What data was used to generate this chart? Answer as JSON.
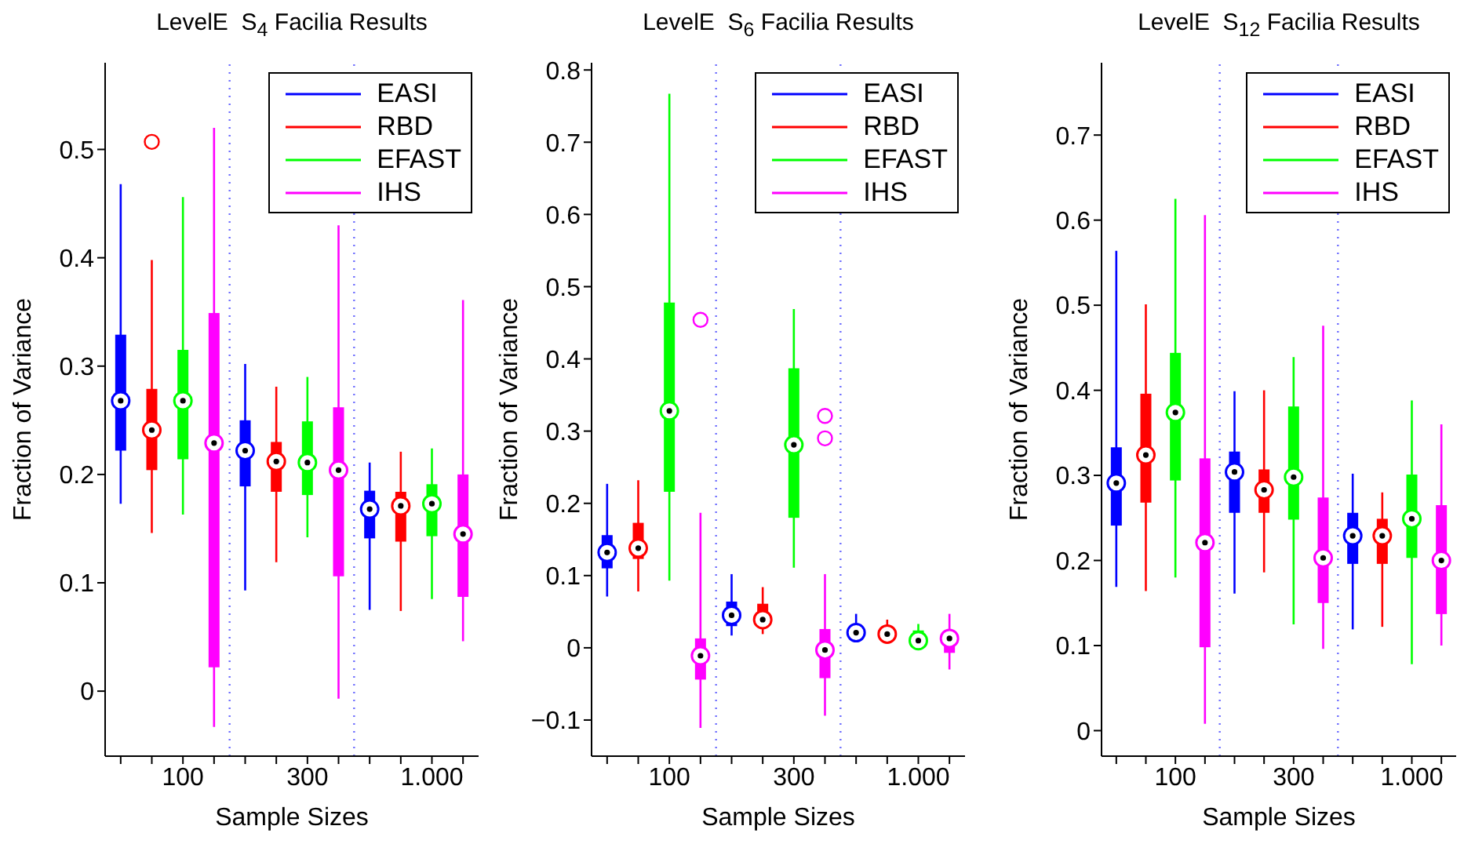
{
  "chart_data": [
    {
      "type": "box",
      "title": "LevelE  S$_{4}$ Facilia Results",
      "xlabel": "Sample Sizes",
      "ylabel": "Fraction of Variance",
      "legend": "top right",
      "categories": [
        null,
        null,
        "100",
        null,
        null,
        null,
        "300",
        null,
        null,
        null,
        "1.000",
        null
      ],
      "ylim": [
        -0.06,
        0.58
      ],
      "yticks": [
        0,
        0.1,
        0.2,
        0.3,
        0.4,
        0.5
      ],
      "series": [
        {
          "name": "EASI",
          "color": "#0000ff",
          "boxes": [
            {
              "low": 0.173,
              "q1": 0.222,
              "median": 0.268,
              "q3": 0.329,
              "high": 0.468
            },
            null,
            null,
            null,
            {
              "low": 0.093,
              "q1": 0.189,
              "median": 0.222,
              "q3": 0.25,
              "high": 0.302
            },
            null,
            null,
            null,
            {
              "low": 0.075,
              "q1": 0.141,
              "median": 0.168,
              "q3": 0.185,
              "high": 0.211
            },
            null,
            null,
            null
          ]
        },
        {
          "name": "RBD",
          "color": "#ff0000",
          "boxes": [
            null,
            {
              "low": 0.146,
              "q1": 0.204,
              "median": 0.241,
              "q3": 0.279,
              "high": 0.398,
              "outliers": [
                0.507
              ]
            },
            null,
            null,
            null,
            {
              "low": 0.119,
              "q1": 0.184,
              "median": 0.212,
              "q3": 0.23,
              "high": 0.281
            },
            null,
            null,
            null,
            {
              "low": 0.074,
              "q1": 0.138,
              "median": 0.171,
              "q3": 0.184,
              "high": 0.221
            },
            null,
            null
          ]
        },
        {
          "name": "EFAST",
          "color": "#00ff00",
          "boxes": [
            null,
            null,
            {
              "low": 0.163,
              "q1": 0.214,
              "median": 0.268,
              "q3": 0.315,
              "high": 0.456
            },
            null,
            null,
            null,
            {
              "low": 0.142,
              "q1": 0.181,
              "median": 0.211,
              "q3": 0.249,
              "high": 0.29
            },
            null,
            null,
            null,
            {
              "low": 0.085,
              "q1": 0.143,
              "median": 0.173,
              "q3": 0.191,
              "high": 0.224
            },
            null
          ]
        },
        {
          "name": "IHS",
          "color": "#ff00ff",
          "boxes": [
            null,
            null,
            null,
            {
              "low": -0.033,
              "q1": 0.022,
              "median": 0.229,
              "q3": 0.349,
              "high": 0.52
            },
            null,
            null,
            null,
            {
              "low": -0.007,
              "q1": 0.106,
              "median": 0.204,
              "q3": 0.262,
              "high": 0.43
            },
            null,
            null,
            null,
            {
              "low": 0.046,
              "q1": 0.087,
              "median": 0.145,
              "q3": 0.2,
              "high": 0.361
            }
          ]
        }
      ]
    },
    {
      "type": "box",
      "title": "LevelE  S$_{6}$ Facilia Results",
      "xlabel": "Sample Sizes",
      "ylabel": "Fraction of Variance",
      "legend": "top right",
      "categories": [
        null,
        null,
        "100",
        null,
        null,
        null,
        "300",
        null,
        null,
        null,
        "1.000",
        null
      ],
      "ylim": [
        -0.15,
        0.81
      ],
      "yticks": [
        -0.1,
        0,
        0.1,
        0.2,
        0.3,
        0.4,
        0.5,
        0.6,
        0.7,
        0.8
      ],
      "series": [
        {
          "name": "EASI",
          "color": "#0000ff",
          "boxes": [
            {
              "low": 0.071,
              "q1": 0.11,
              "median": 0.132,
              "q3": 0.156,
              "high": 0.227
            },
            null,
            null,
            null,
            {
              "low": 0.017,
              "q1": 0.03,
              "median": 0.045,
              "q3": 0.064,
              "high": 0.102
            },
            null,
            null,
            null,
            {
              "low": 0.013,
              "q1": 0.018,
              "median": 0.021,
              "q3": 0.024,
              "high": 0.047
            },
            null,
            null,
            null
          ]
        },
        {
          "name": "RBD",
          "color": "#ff0000",
          "boxes": [
            null,
            {
              "low": 0.078,
              "q1": 0.123,
              "median": 0.138,
              "q3": 0.173,
              "high": 0.232
            },
            null,
            null,
            null,
            {
              "low": 0.019,
              "q1": 0.028,
              "median": 0.039,
              "q3": 0.061,
              "high": 0.084
            },
            null,
            null,
            null,
            {
              "low": 0.012,
              "q1": 0.016,
              "median": 0.019,
              "q3": 0.022,
              "high": 0.039
            },
            null,
            null
          ]
        },
        {
          "name": "EFAST",
          "color": "#00ff00",
          "boxes": [
            null,
            null,
            {
              "low": 0.093,
              "q1": 0.216,
              "median": 0.328,
              "q3": 0.478,
              "high": 0.767
            },
            null,
            null,
            null,
            {
              "low": 0.111,
              "q1": 0.18,
              "median": 0.281,
              "q3": 0.387,
              "high": 0.469
            },
            null,
            null,
            null,
            {
              "low": 0.002,
              "q1": 0.005,
              "median": 0.01,
              "q3": 0.024,
              "high": 0.033
            },
            null
          ]
        },
        {
          "name": "IHS",
          "color": "#ff00ff",
          "boxes": [
            null,
            null,
            null,
            {
              "low": -0.111,
              "q1": -0.044,
              "median": -0.011,
              "q3": 0.013,
              "high": 0.187,
              "outliers": [
                0.454
              ]
            },
            null,
            null,
            null,
            {
              "low": -0.094,
              "q1": -0.042,
              "median": -0.003,
              "q3": 0.026,
              "high": 0.102,
              "outliers": [
                0.321,
                0.29
              ]
            },
            null,
            null,
            null,
            {
              "low": -0.03,
              "q1": -0.007,
              "median": 0.013,
              "q3": 0.016,
              "high": 0.047
            }
          ]
        }
      ]
    },
    {
      "type": "box",
      "title": "LevelE  S$_{12}$ Facilia Results",
      "xlabel": "Sample Sizes",
      "ylabel": "Fraction of Variance",
      "legend": "top right",
      "categories": [
        null,
        null,
        "100",
        null,
        null,
        null,
        "300",
        null,
        null,
        null,
        "1.000",
        null
      ],
      "ylim": [
        -0.03,
        0.785
      ],
      "yticks": [
        0,
        0.1,
        0.2,
        0.3,
        0.4,
        0.5,
        0.6,
        0.7
      ],
      "series": [
        {
          "name": "EASI",
          "color": "#0000ff",
          "boxes": [
            {
              "low": 0.169,
              "q1": 0.241,
              "median": 0.291,
              "q3": 0.333,
              "high": 0.564
            },
            null,
            null,
            null,
            {
              "low": 0.161,
              "q1": 0.256,
              "median": 0.304,
              "q3": 0.328,
              "high": 0.399
            },
            null,
            null,
            null,
            {
              "low": 0.119,
              "q1": 0.196,
              "median": 0.229,
              "q3": 0.256,
              "high": 0.302
            },
            null,
            null,
            null
          ]
        },
        {
          "name": "RBD",
          "color": "#ff0000",
          "boxes": [
            null,
            {
              "low": 0.164,
              "q1": 0.268,
              "median": 0.324,
              "q3": 0.396,
              "high": 0.501
            },
            null,
            null,
            null,
            {
              "low": 0.186,
              "q1": 0.256,
              "median": 0.283,
              "q3": 0.307,
              "high": 0.4
            },
            null,
            null,
            null,
            {
              "low": 0.122,
              "q1": 0.196,
              "median": 0.229,
              "q3": 0.249,
              "high": 0.28
            },
            null,
            null
          ]
        },
        {
          "name": "EFAST",
          "color": "#00ff00",
          "boxes": [
            null,
            null,
            {
              "low": 0.18,
              "q1": 0.294,
              "median": 0.374,
              "q3": 0.444,
              "high": 0.625
            },
            null,
            null,
            null,
            {
              "low": 0.125,
              "q1": 0.248,
              "median": 0.298,
              "q3": 0.381,
              "high": 0.439
            },
            null,
            null,
            null,
            {
              "low": 0.078,
              "q1": 0.203,
              "median": 0.249,
              "q3": 0.301,
              "high": 0.388
            },
            null
          ]
        },
        {
          "name": "IHS",
          "color": "#ff00ff",
          "boxes": [
            null,
            null,
            null,
            {
              "low": 0.008,
              "q1": 0.098,
              "median": 0.221,
              "q3": 0.32,
              "high": 0.606
            },
            null,
            null,
            null,
            {
              "low": 0.096,
              "q1": 0.15,
              "median": 0.203,
              "q3": 0.274,
              "high": 0.476
            },
            null,
            null,
            null,
            {
              "low": 0.1,
              "q1": 0.137,
              "median": 0.2,
              "q3": 0.265,
              "high": 0.36
            }
          ]
        }
      ]
    }
  ]
}
